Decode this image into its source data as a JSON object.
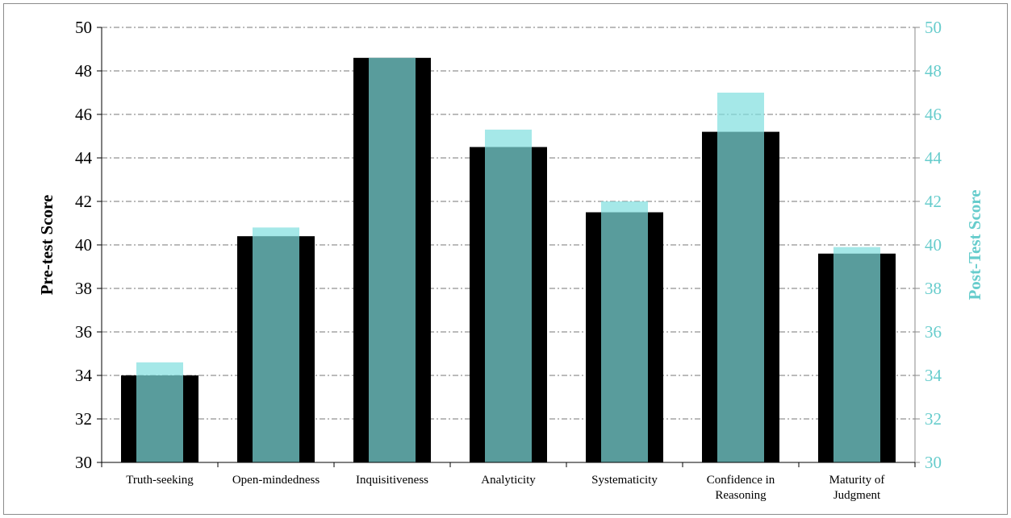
{
  "chart_data": {
    "type": "bar",
    "categories": [
      "Truth-seeking",
      "Open-mindedness",
      "Inquisitiveness",
      "Analyticity",
      "Systematicity",
      "Confidence in Reasoning",
      "Maturity of Judgment"
    ],
    "series": [
      {
        "values": [
          34.0,
          40.4,
          48.6,
          44.5,
          41.5,
          45.2,
          39.6
        ],
        "color": "#000000"
      },
      {
        "values": [
          34.6,
          40.8,
          48.6,
          45.3,
          42.0,
          47.0,
          39.9
        ],
        "color": "#7fdede",
        "opacity": 0.7
      }
    ],
    "ylabel": "Pre-test Score",
    "y2label": "Post-Test Score",
    "ylim": [
      30,
      50
    ],
    "y2lim": [
      30,
      50
    ],
    "yticks": [
      30,
      32,
      34,
      36,
      38,
      40,
      42,
      44,
      46,
      48,
      50
    ],
    "y2ticks": [
      30,
      32,
      34,
      36,
      38,
      40,
      42,
      44,
      46,
      48,
      50
    ],
    "grid": true,
    "legend": "none",
    "colors": {
      "left_axis": "#000000",
      "right_axis": "#66cccc",
      "gridline": "#777777"
    }
  }
}
